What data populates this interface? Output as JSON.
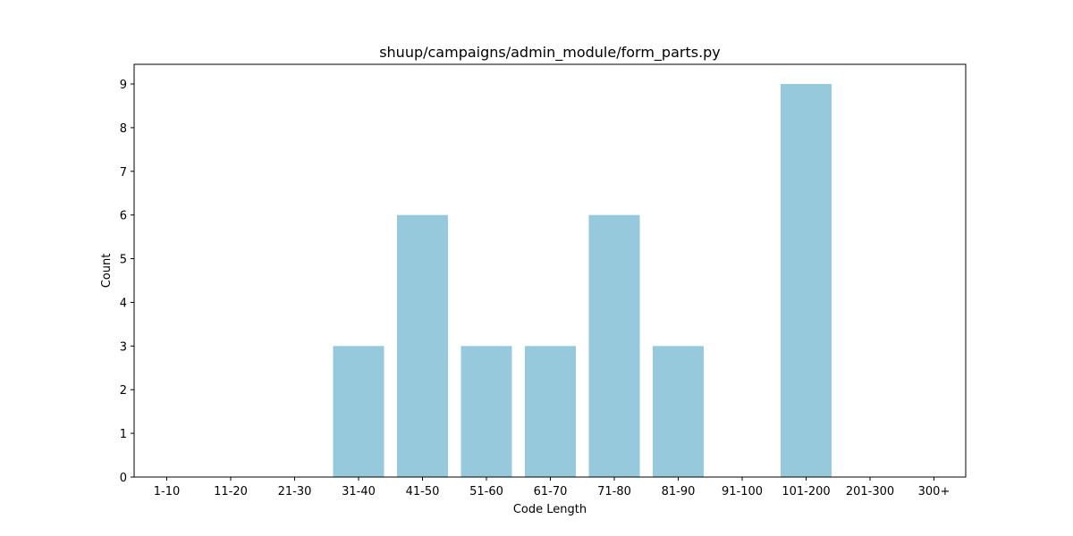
{
  "chart_data": {
    "type": "bar",
    "title": "shuup/campaigns/admin_module/form_parts.py",
    "xlabel": "Code Length",
    "ylabel": "Count",
    "categories": [
      "1-10",
      "11-20",
      "21-30",
      "31-40",
      "41-50",
      "51-60",
      "61-70",
      "71-80",
      "81-90",
      "91-100",
      "101-200",
      "201-300",
      "300+"
    ],
    "values": [
      0,
      0,
      0,
      3,
      6,
      3,
      3,
      6,
      3,
      0,
      9,
      0,
      0
    ],
    "yticks": [
      "0",
      "1",
      "2",
      "3",
      "4",
      "5",
      "6",
      "7",
      "8",
      "9"
    ],
    "ylim": [
      0,
      9.45
    ],
    "grid": false,
    "legend": "none",
    "bar_color": "#96c9dc"
  }
}
